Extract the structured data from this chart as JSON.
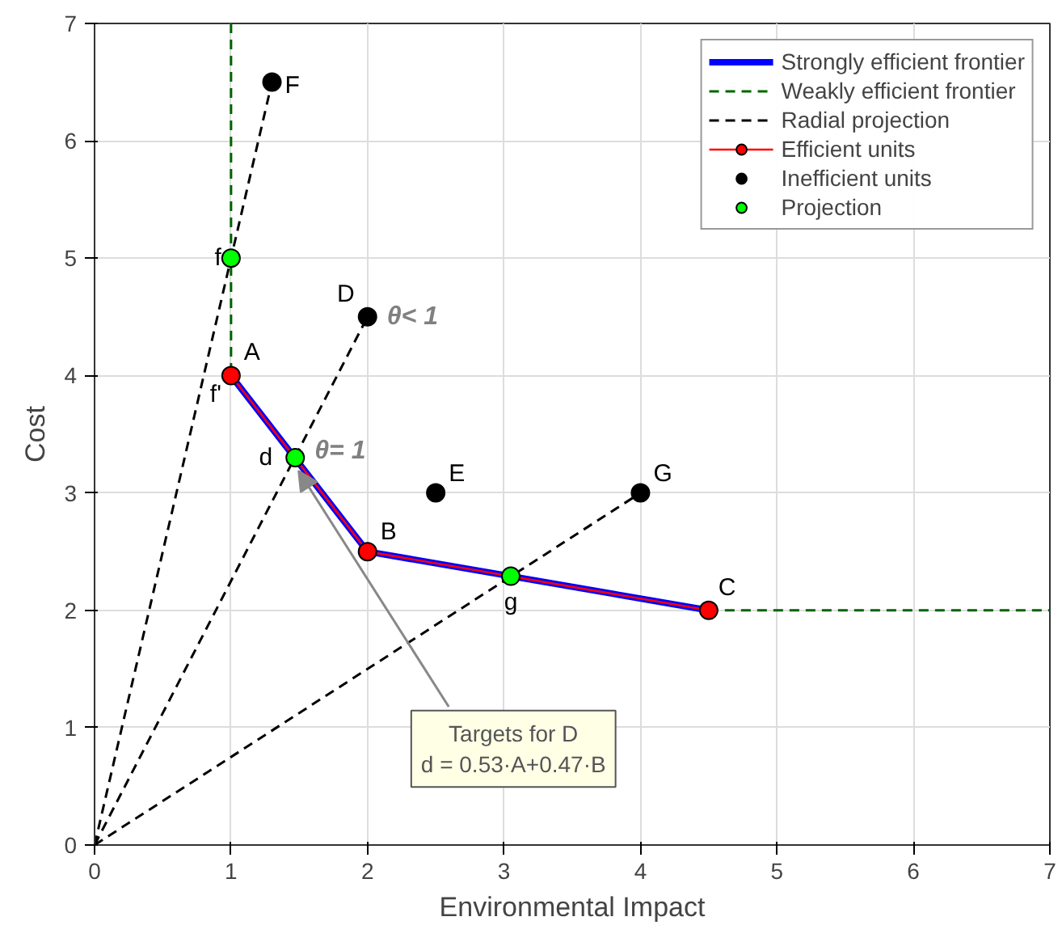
{
  "chart_data": {
    "type": "line",
    "xlabel": "Environmental Impact",
    "ylabel": "Cost",
    "xlim": [
      0,
      7
    ],
    "ylim": [
      0,
      7
    ],
    "xticks": [
      0,
      1,
      2,
      3,
      4,
      5,
      6,
      7
    ],
    "yticks": [
      0,
      1,
      2,
      3,
      4,
      5,
      6,
      7
    ],
    "grid": true,
    "legend": "top right",
    "series": [
      {
        "name": "Strongly efficient frontier",
        "color": "#0000ff",
        "x": [
          1,
          2,
          4.5
        ],
        "values": [
          4,
          2.5,
          2
        ]
      },
      {
        "name": "Weakly efficient frontier",
        "line_style": "dashed",
        "color": "#006400",
        "x": [
          1,
          1,
          2,
          4.5,
          7
        ],
        "values": [
          7,
          4,
          null,
          2,
          2
        ]
      },
      {
        "name": "Radial projection",
        "line_style": "dashed",
        "color": "#000000",
        "x": [
          0,
          1.3
        ],
        "values": [
          0,
          6.5
        ]
      },
      {
        "line_style": "dashed",
        "color": "#000000",
        "x": [
          0,
          2
        ],
        "values": [
          0,
          4.5
        ]
      },
      {
        "line_style": "dashed",
        "color": "#000000",
        "x": [
          0,
          4
        ],
        "values": [
          0,
          3
        ]
      },
      {
        "name": "Efficient units",
        "marker": "circle",
        "color": "#ff0000",
        "x": [
          1,
          2,
          4.5
        ],
        "values": [
          4,
          2.5,
          2
        ]
      },
      {
        "name": "Inefficient units",
        "type": "scatter",
        "marker": "circle",
        "color": "#000000",
        "x": [
          2,
          2.5,
          1.3,
          4
        ],
        "values": [
          4.5,
          3,
          6.5,
          3
        ]
      },
      {
        "name": "Projection",
        "type": "scatter",
        "marker": "circle",
        "color": "#00ff00",
        "x": [
          1,
          1.47,
          3.05
        ],
        "values": [
          5,
          3.3,
          2.29
        ]
      }
    ],
    "annotations": [
      {
        "text": "F",
        "x": 1.3,
        "y": 6.5
      },
      {
        "text": "f",
        "x": 1,
        "y": 5
      },
      {
        "text": "D",
        "x": 2,
        "y": 4.5
      },
      {
        "text": "θ< 1",
        "x": 2,
        "y": 4.5
      },
      {
        "text": "A",
        "x": 1,
        "y": 4
      },
      {
        "text": "f'",
        "x": 1,
        "y": 4
      },
      {
        "text": "d",
        "x": 1.47,
        "y": 3.3
      },
      {
        "text": "θ= 1",
        "x": 1.47,
        "y": 3.3
      },
      {
        "text": "E",
        "x": 2.5,
        "y": 3
      },
      {
        "text": "G",
        "x": 4,
        "y": 3
      },
      {
        "text": "B",
        "x": 2,
        "y": 2.5
      },
      {
        "text": "g",
        "x": 3.05,
        "y": 2.29
      },
      {
        "text": "C",
        "x": 4.5,
        "y": 2
      },
      {
        "text": "Targets for D\nd = 0.53·A+0.47·B",
        "x": 1.47,
        "y": 3.3
      }
    ]
  }
}
